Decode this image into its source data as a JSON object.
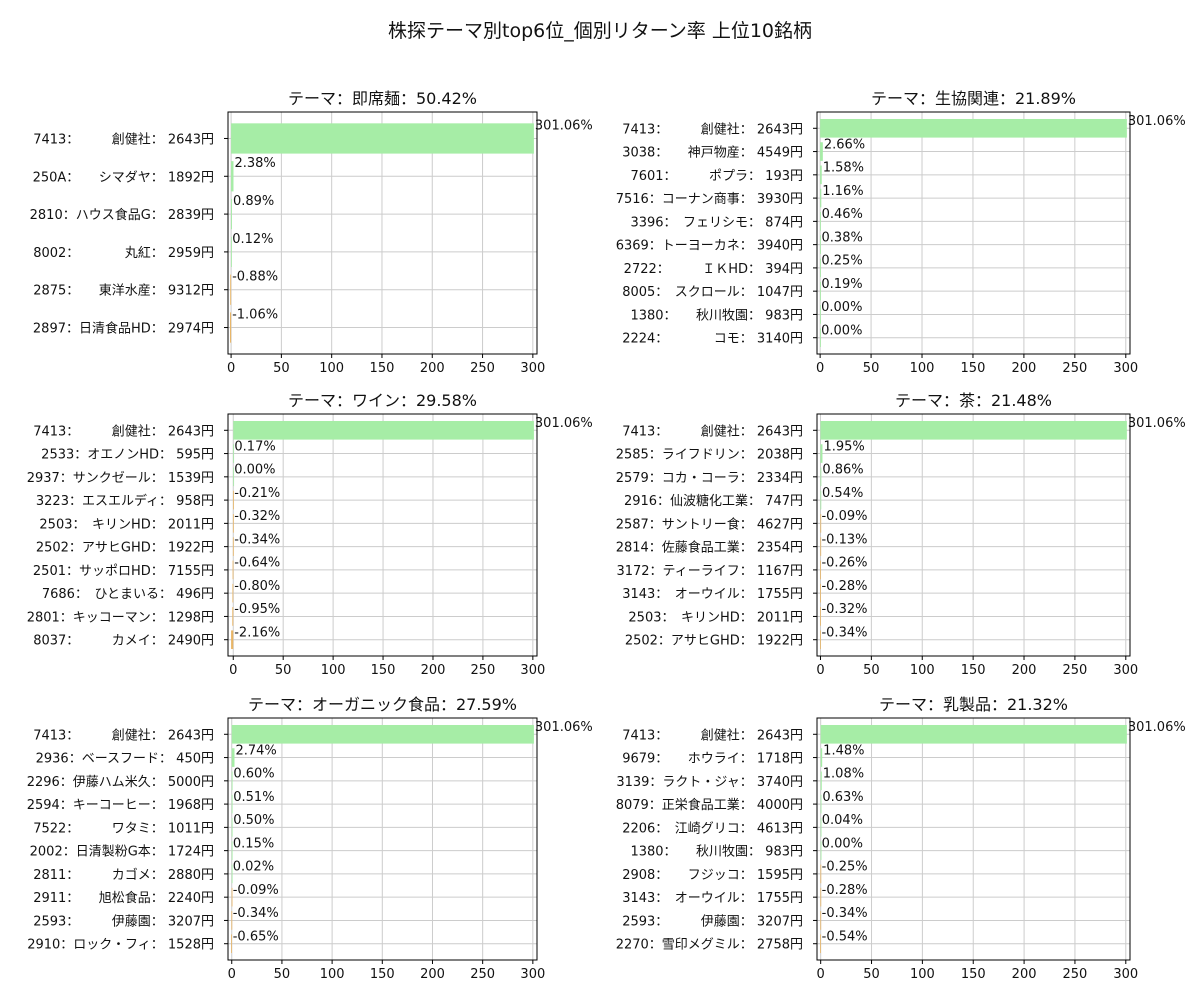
{
  "suptitle": "株探テーマ別top6位_個別リターン率 上位10銘柄",
  "colors": {
    "positive": "#a6eda6",
    "negative": "#e8b566",
    "grid": "#cccccc",
    "axis": "#000000"
  },
  "chart_data": [
    {
      "type": "bar",
      "orientation": "horizontal",
      "title": "テーマ：即席麺：50.42%",
      "xlim": [
        0,
        301.06
      ],
      "xticks": [
        0,
        50,
        100,
        150,
        200,
        250,
        300
      ],
      "grid": true,
      "categories": [
        "7413：　　　創健社： 2643円",
        "250A：　　シマダヤ： 1892円",
        "2810：ハウス食品G： 2839円",
        "8002：　　　　丸紅： 2959円",
        "2875：　　東洋水産： 9312円",
        "2897：日清食品HD： 2974円"
      ],
      "values": [
        301.06,
        2.38,
        0.89,
        0.12,
        -0.88,
        -1.06
      ],
      "labels": [
        "301.06%",
        "2.38%",
        "0.89%",
        "0.12%",
        "-0.88%",
        "-1.06%"
      ]
    },
    {
      "type": "bar",
      "orientation": "horizontal",
      "title": "テーマ：生協関連：21.89%",
      "xlim": [
        0,
        301.06
      ],
      "xticks": [
        0,
        50,
        100,
        150,
        200,
        250,
        300
      ],
      "grid": true,
      "categories": [
        "7413：　　　創健社： 2643円",
        "3038：　　神戸物産： 4549円",
        "7601：　　　ポプラ： 193円",
        "7516：コーナン商事： 3930円",
        "3396：　フェリシモ： 874円",
        "6369：トーヨーカネ： 3940円",
        "2722：　　　ＩＫHD： 394円",
        "8005：　スクロール： 1047円",
        "1380：　　秋川牧園： 983円",
        "2224：　　　　コモ： 3140円"
      ],
      "values": [
        301.06,
        2.66,
        1.58,
        1.16,
        0.46,
        0.38,
        0.25,
        0.19,
        0.0,
        0.0
      ],
      "labels": [
        "301.06%",
        "2.66%",
        "1.58%",
        "1.16%",
        "0.46%",
        "0.38%",
        "0.25%",
        "0.19%",
        "0.00%",
        "0.00%"
      ]
    },
    {
      "type": "bar",
      "orientation": "horizontal",
      "title": "テーマ：ワイン：29.58%",
      "xlim": [
        -2.16,
        301.06
      ],
      "xticks": [
        0,
        50,
        100,
        150,
        200,
        250,
        300
      ],
      "grid": true,
      "categories": [
        "7413：　　　創健社： 2643円",
        "2533：オエノンHD： 595円",
        "2937：サンクゼール： 1539円",
        "3223：エスエルディ： 958円",
        "2503：　キリンHD： 2011円",
        "2502：アサヒGHD： 1922円",
        "2501：サッポロHD： 7155円",
        "7686：　ひとまいる： 496円",
        "2801：キッコーマン： 1298円",
        "8037：　　　カメイ： 2490円"
      ],
      "values": [
        301.06,
        0.17,
        0.0,
        -0.21,
        -0.32,
        -0.34,
        -0.64,
        -0.8,
        -0.95,
        -2.16
      ],
      "labels": [
        "301.06%",
        "0.17%",
        "0.00%",
        "-0.21%",
        "-0.32%",
        "-0.34%",
        "-0.64%",
        "-0.80%",
        "-0.95%",
        "-2.16%"
      ]
    },
    {
      "type": "bar",
      "orientation": "horizontal",
      "title": "テーマ：茶：21.48%",
      "xlim": [
        -0.34,
        301.06
      ],
      "xticks": [
        0,
        50,
        100,
        150,
        200,
        250,
        300
      ],
      "grid": true,
      "categories": [
        "7413：　　　創健社： 2643円",
        "2585：ライフドリン： 2038円",
        "2579：コカ・コーラ： 2334円",
        "2916：仙波糖化工業： 747円",
        "2587：サントリー食： 4627円",
        "2814：佐藤食品工業： 2354円",
        "3172：ティーライフ： 1167円",
        "3143：　オーウイル： 1755円",
        "2503：　キリンHD： 2011円",
        "2502：アサヒGHD： 1922円"
      ],
      "values": [
        301.06,
        1.95,
        0.86,
        0.54,
        -0.09,
        -0.13,
        -0.26,
        -0.28,
        -0.32,
        -0.34
      ],
      "labels": [
        "301.06%",
        "1.95%",
        "0.86%",
        "0.54%",
        "-0.09%",
        "-0.13%",
        "-0.26%",
        "-0.28%",
        "-0.32%",
        "-0.34%"
      ]
    },
    {
      "type": "bar",
      "orientation": "horizontal",
      "title": "テーマ：オーガニック食品：27.59%",
      "xlim": [
        -0.65,
        301.06
      ],
      "xticks": [
        0,
        50,
        100,
        150,
        200,
        250,
        300
      ],
      "grid": true,
      "categories": [
        "7413：　　　創健社： 2643円",
        "2936：ベースフード： 450円",
        "2296：伊藤ハム米久： 5000円",
        "2594：キーコーヒー： 1968円",
        "7522：　　　ワタミ： 1011円",
        "2002：日清製粉G本： 1724円",
        "2811：　　　カゴメ： 2880円",
        "2911：　　旭松食品： 2240円",
        "2593：　　　伊藤園： 3207円",
        "2910：ロック・フィ： 1528円"
      ],
      "values": [
        301.06,
        2.74,
        0.6,
        0.51,
        0.5,
        0.15,
        0.02,
        -0.09,
        -0.34,
        -0.65
      ],
      "labels": [
        "301.06%",
        "2.74%",
        "0.60%",
        "0.51%",
        "0.50%",
        "0.15%",
        "0.02%",
        "-0.09%",
        "-0.34%",
        "-0.65%"
      ]
    },
    {
      "type": "bar",
      "orientation": "horizontal",
      "title": "テーマ：乳製品：21.32%",
      "xlim": [
        -0.54,
        301.06
      ],
      "xticks": [
        0,
        50,
        100,
        150,
        200,
        250,
        300
      ],
      "grid": true,
      "categories": [
        "7413：　　　創健社： 2643円",
        "9679：　　ホウライ： 1718円",
        "3139：ラクト・ジャ： 3740円",
        "8079：正栄食品工業： 4000円",
        "2206：　江崎グリコ： 4613円",
        "1380：　　秋川牧園： 983円",
        "2908：　　フジッコ： 1595円",
        "3143：　オーウイル： 1755円",
        "2593：　　　伊藤園： 3207円",
        "2270：雪印メグミル： 2758円"
      ],
      "values": [
        301.06,
        1.48,
        1.08,
        0.63,
        0.04,
        0.0,
        -0.25,
        -0.28,
        -0.34,
        -0.54
      ],
      "labels": [
        "301.06%",
        "1.48%",
        "1.08%",
        "0.63%",
        "0.04%",
        "0.00%",
        "-0.25%",
        "-0.28%",
        "-0.34%",
        "-0.54%"
      ]
    }
  ]
}
